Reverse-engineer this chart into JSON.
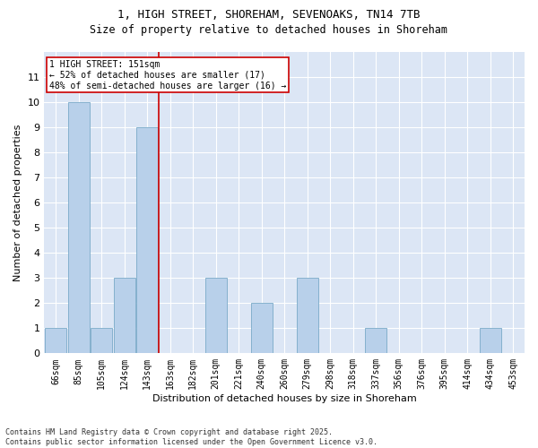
{
  "title1": "1, HIGH STREET, SHOREHAM, SEVENOAKS, TN14 7TB",
  "title2": "Size of property relative to detached houses in Shoreham",
  "xlabel": "Distribution of detached houses by size in Shoreham",
  "ylabel": "Number of detached properties",
  "categories": [
    "66sqm",
    "85sqm",
    "105sqm",
    "124sqm",
    "143sqm",
    "163sqm",
    "182sqm",
    "201sqm",
    "221sqm",
    "240sqm",
    "260sqm",
    "279sqm",
    "298sqm",
    "318sqm",
    "337sqm",
    "356sqm",
    "376sqm",
    "395sqm",
    "414sqm",
    "434sqm",
    "453sqm"
  ],
  "values": [
    1,
    10,
    1,
    3,
    9,
    0,
    0,
    3,
    0,
    2,
    0,
    3,
    0,
    0,
    1,
    0,
    0,
    0,
    0,
    1,
    0
  ],
  "bar_color": "#b8d0ea",
  "bar_edge_color": "#7aaac8",
  "vline_x": 4.5,
  "vline_color": "#cc0000",
  "annotation_text": "1 HIGH STREET: 151sqm\n← 52% of detached houses are smaller (17)\n48% of semi-detached houses are larger (16) →",
  "annotation_box_color": "#ffffff",
  "annotation_box_edge": "#cc0000",
  "ylim": [
    0,
    12
  ],
  "yticks": [
    0,
    1,
    2,
    3,
    4,
    5,
    6,
    7,
    8,
    9,
    10,
    11,
    12
  ],
  "bg_color": "#dce6f5",
  "footnote": "Contains HM Land Registry data © Crown copyright and database right 2025.\nContains public sector information licensed under the Open Government Licence v3.0.",
  "title1_fontsize": 9,
  "title2_fontsize": 8.5,
  "xlabel_fontsize": 8,
  "ylabel_fontsize": 8,
  "tick_fontsize": 7,
  "annot_fontsize": 7,
  "footnote_fontsize": 6
}
